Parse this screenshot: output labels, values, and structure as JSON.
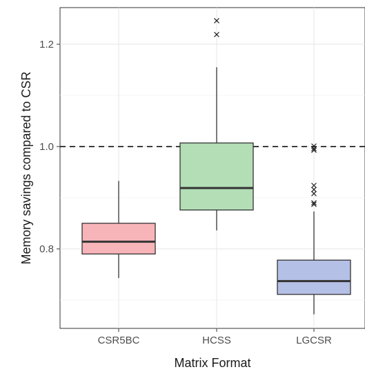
{
  "chart_data": {
    "type": "boxplot",
    "xlabel": "Matrix Format",
    "ylabel": "Memory savings compared to CSR",
    "categories": [
      "CSR5BC",
      "HCSS",
      "LGCSR"
    ],
    "ylim": [
      0.64,
      1.28
    ],
    "yticks": [
      0.8,
      1.0,
      1.2
    ],
    "ytick_labels": [
      "0.8",
      "1.0",
      "1.2"
    ],
    "grid": true,
    "reference_line": {
      "y": 1.0,
      "style": "dashed"
    },
    "boxes": [
      {
        "category": "CSR5BC",
        "color": "#f8b5b9",
        "min": 0.743,
        "q1": 0.79,
        "median": 0.814,
        "q3": 0.85,
        "max": 0.933,
        "outliers": []
      },
      {
        "category": "HCSS",
        "color": "#b3deb6",
        "min": 0.836,
        "q1": 0.876,
        "median": 0.919,
        "q3": 1.007,
        "max": 1.155,
        "outliers": [
          1.219,
          1.246
        ]
      },
      {
        "category": "LGCSR",
        "color": "#b5c0e6",
        "min": 0.672,
        "q1": 0.711,
        "median": 0.737,
        "q3": 0.778,
        "max": 0.873,
        "outliers": [
          0.887,
          0.89,
          0.908,
          0.916,
          0.924,
          0.993,
          0.996,
          1.001
        ]
      }
    ]
  }
}
